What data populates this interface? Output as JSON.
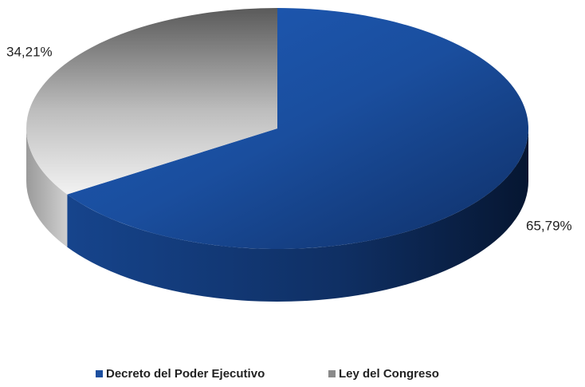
{
  "chart_data": {
    "type": "pie",
    "categories": [
      "Decreto del Poder Ejecutivo",
      "Ley del Congreso"
    ],
    "values": [
      65.79,
      34.21
    ],
    "value_labels": [
      "65,79%",
      "34,21%"
    ],
    "colors": [
      "#1c4f9f",
      "#8a8a8a"
    ],
    "legend": "bottom"
  }
}
